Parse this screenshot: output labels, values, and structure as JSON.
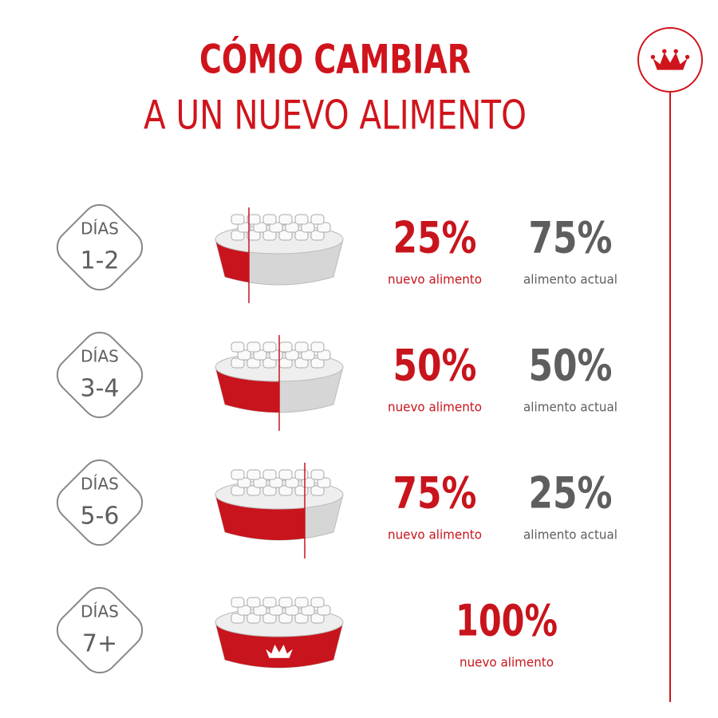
{
  "header": {
    "title_line1": "CÓMO CAMBIAR",
    "title_line2": "A UN NUEVO ALIMENTO"
  },
  "steps": [
    {
      "days_label": "DÍAS",
      "days": "1-2",
      "new_percent": "25%",
      "new_label": "nuevo alimento",
      "current_percent": "75%",
      "current_label": "alimento actual"
    },
    {
      "days_label": "DÍAS",
      "days": "3-4",
      "new_percent": "50%",
      "new_label": "nuevo alimento",
      "current_percent": "50%",
      "current_label": "alimento actual"
    },
    {
      "days_label": "DÍAS",
      "days": "5-6",
      "new_percent": "75%",
      "new_label": "nuevo alimento",
      "current_percent": "25%",
      "current_label": "alimento actual"
    },
    {
      "days_label": "DÍAS",
      "days": "7+",
      "new_percent": "100%",
      "new_label": "nuevo alimento"
    }
  ]
}
